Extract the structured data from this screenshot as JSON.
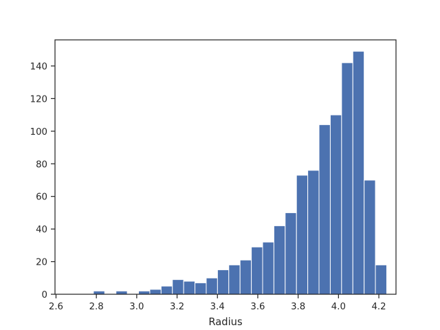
{
  "chart_data": {
    "type": "bar",
    "title": "",
    "xlabel": "Radius",
    "ylabel": "",
    "xlim": [
      2.595,
      4.285
    ],
    "ylim": [
      0,
      156
    ],
    "xticks": [
      2.6,
      2.8,
      3.0,
      3.2,
      3.4,
      3.6,
      3.8,
      4.0,
      4.2
    ],
    "yticks": [
      0,
      20,
      40,
      60,
      80,
      100,
      120,
      140
    ],
    "grid": false,
    "bar_color": "#4c72b0",
    "bin_edges": [
      2.6737,
      2.7296,
      2.7855,
      2.8414,
      2.8973,
      2.9532,
      3.0091,
      3.065,
      3.1209,
      3.1768,
      3.2327,
      3.2886,
      3.3445,
      3.4004,
      3.4563,
      3.5122,
      3.5681,
      3.624,
      3.6799,
      3.7358,
      3.7917,
      3.8476,
      3.9035,
      3.9594,
      4.0153,
      4.0712,
      4.1271,
      4.183,
      4.2389
    ],
    "values": [
      0,
      0,
      2,
      0,
      2,
      0,
      2,
      3,
      5,
      9,
      8,
      7,
      10,
      15,
      18,
      21,
      29,
      32,
      42,
      50,
      73,
      76,
      104,
      110,
      142,
      149,
      70,
      18
    ]
  }
}
